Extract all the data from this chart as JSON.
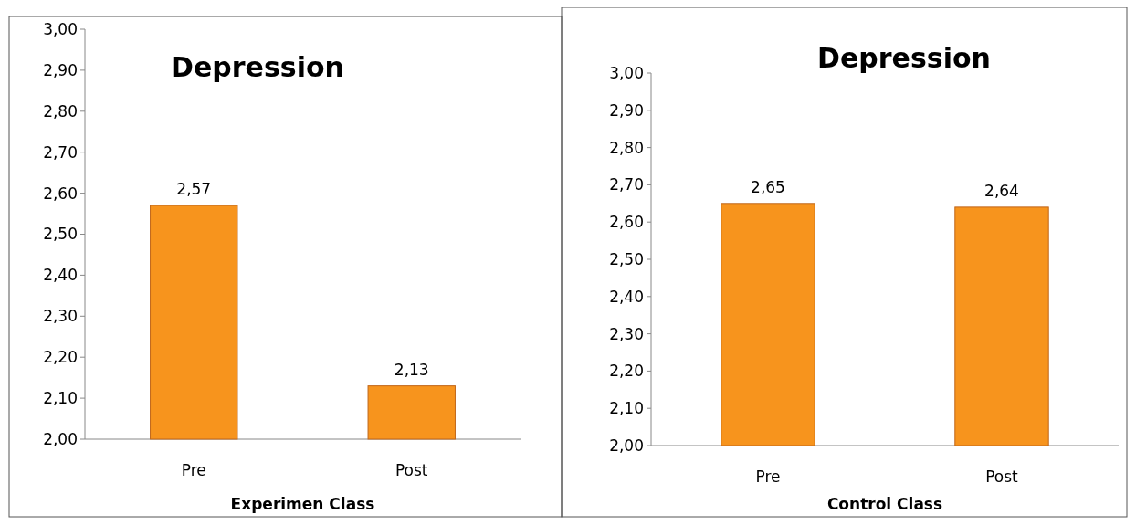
{
  "chart_data": [
    {
      "type": "bar",
      "title": "Depression",
      "xlabel": "Experimen Class",
      "categories": [
        "Pre",
        "Post"
      ],
      "values": [
        2.57,
        2.13
      ],
      "value_labels": [
        "2,57",
        "2,13"
      ],
      "color": "#f7941d",
      "ylim": [
        2,
        3
      ],
      "yticks": [
        {
          "value": 2,
          "label": "2,00"
        },
        {
          "value": 2.1,
          "label": "2,10"
        },
        {
          "value": 2.2,
          "label": "2,20"
        },
        {
          "value": 2.3,
          "label": "2,30"
        },
        {
          "value": 2.4,
          "label": "2,40"
        },
        {
          "value": 2.5,
          "label": "2,50"
        },
        {
          "value": 2.6,
          "label": "2,60"
        },
        {
          "value": 2.7,
          "label": "2,70"
        },
        {
          "value": 2.8,
          "label": "2,80"
        },
        {
          "value": 2.9,
          "label": "2,90"
        },
        {
          "value": 3,
          "label": "3,00"
        }
      ]
    },
    {
      "type": "bar",
      "title": "Depression",
      "xlabel": "Control Class",
      "categories": [
        "Pre",
        "Post"
      ],
      "values": [
        2.65,
        2.64
      ],
      "value_labels": [
        "2,65",
        "2,64"
      ],
      "color": "#f7941d",
      "ylim": [
        2,
        3
      ],
      "yticks": [
        {
          "value": 2,
          "label": "2,00"
        },
        {
          "value": 2.1,
          "label": "2,10"
        },
        {
          "value": 2.2,
          "label": "2,20"
        },
        {
          "value": 2.3,
          "label": "2,30"
        },
        {
          "value": 2.4,
          "label": "2,40"
        },
        {
          "value": 2.5,
          "label": "2,50"
        },
        {
          "value": 2.6,
          "label": "2,60"
        },
        {
          "value": 2.7,
          "label": "2,70"
        },
        {
          "value": 2.8,
          "label": "2,80"
        },
        {
          "value": 2.9,
          "label": "2,90"
        },
        {
          "value": 3,
          "label": "3,00"
        }
      ]
    }
  ]
}
